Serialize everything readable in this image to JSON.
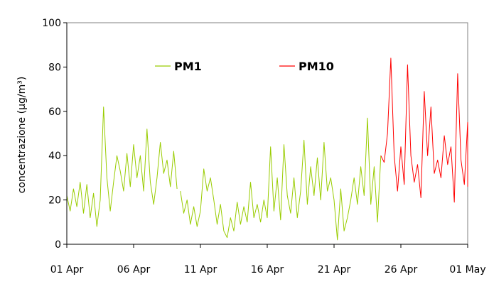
{
  "chart_data": {
    "type": "line",
    "title": "",
    "ylabel": "concentrazione (µg/m³)",
    "xlabel": "",
    "ylim": [
      0,
      100
    ],
    "yticks": [
      0,
      20,
      40,
      60,
      80,
      100
    ],
    "xlim": [
      "2008-04-01",
      "2008-05-01"
    ],
    "xticks": [
      {
        "date": "2008-04-01",
        "label": "01 Apr"
      },
      {
        "date": "2008-04-06",
        "label": "06 Apr"
      },
      {
        "date": "2008-04-11",
        "label": "11 Apr"
      },
      {
        "date": "2008-04-16",
        "label": "16 Apr"
      },
      {
        "date": "2008-04-21",
        "label": "21 Apr"
      },
      {
        "date": "2008-04-26",
        "label": "26 Apr"
      },
      {
        "date": "2008-05-01",
        "label": "01 May"
      }
    ],
    "grid": false,
    "legend": "top",
    "series": [
      {
        "name": "PM1",
        "color": "#99CC00",
        "points": [
          [
            "2008-04-01 00:00",
            22
          ],
          [
            "2008-04-01 06:00",
            15
          ],
          [
            "2008-04-01 12:00",
            25
          ],
          [
            "2008-04-01 18:00",
            17
          ],
          [
            "2008-04-02 00:00",
            28
          ],
          [
            "2008-04-02 06:00",
            14
          ],
          [
            "2008-04-02 12:00",
            27
          ],
          [
            "2008-04-02 18:00",
            12
          ],
          [
            "2008-04-03 00:00",
            23
          ],
          [
            "2008-04-03 06:00",
            8
          ],
          [
            "2008-04-03 12:00",
            20
          ],
          [
            "2008-04-03 18:00",
            62
          ],
          [
            "2008-04-04 00:00",
            30
          ],
          [
            "2008-04-04 06:00",
            15
          ],
          [
            "2008-04-04 12:00",
            28
          ],
          [
            "2008-04-04 18:00",
            40
          ],
          [
            "2008-04-05 00:00",
            33
          ],
          [
            "2008-04-05 06:00",
            24
          ],
          [
            "2008-04-05 12:00",
            41
          ],
          [
            "2008-04-05 18:00",
            26
          ],
          [
            "2008-04-06 00:00",
            45
          ],
          [
            "2008-04-06 06:00",
            30
          ],
          [
            "2008-04-06 12:00",
            40
          ],
          [
            "2008-04-06 18:00",
            24
          ],
          [
            "2008-04-07 00:00",
            52
          ],
          [
            "2008-04-07 06:00",
            28
          ],
          [
            "2008-04-07 12:00",
            18
          ],
          [
            "2008-04-07 18:00",
            30
          ],
          [
            "2008-04-08 00:00",
            46
          ],
          [
            "2008-04-08 06:00",
            32
          ],
          [
            "2008-04-08 12:00",
            38
          ],
          [
            "2008-04-08 18:00",
            26
          ],
          [
            "2008-04-09 00:00",
            42
          ],
          [
            "2008-04-09 06:00",
            25
          ]
        ]
      },
      {
        "name": "PM1",
        "color": "#99CC00",
        "points": [
          [
            "2008-04-09 12:00",
            24
          ],
          [
            "2008-04-09 18:00",
            14
          ],
          [
            "2008-04-10 00:00",
            20
          ],
          [
            "2008-04-10 06:00",
            9
          ],
          [
            "2008-04-10 12:00",
            17
          ],
          [
            "2008-04-10 18:00",
            8
          ],
          [
            "2008-04-11 00:00",
            15
          ],
          [
            "2008-04-11 06:00",
            34
          ],
          [
            "2008-04-11 12:00",
            24
          ],
          [
            "2008-04-11 18:00",
            30
          ],
          [
            "2008-04-12 00:00",
            20
          ],
          [
            "2008-04-12 06:00",
            9
          ],
          [
            "2008-04-12 12:00",
            18
          ],
          [
            "2008-04-12 18:00",
            6
          ],
          [
            "2008-04-13 00:00",
            3
          ],
          [
            "2008-04-13 06:00",
            12
          ],
          [
            "2008-04-13 12:00",
            6
          ],
          [
            "2008-04-13 18:00",
            19
          ],
          [
            "2008-04-14 00:00",
            9
          ],
          [
            "2008-04-14 06:00",
            17
          ],
          [
            "2008-04-14 12:00",
            10
          ],
          [
            "2008-04-14 18:00",
            28
          ],
          [
            "2008-04-15 00:00",
            12
          ],
          [
            "2008-04-15 06:00",
            18
          ],
          [
            "2008-04-15 12:00",
            10
          ],
          [
            "2008-04-15 18:00",
            20
          ],
          [
            "2008-04-16 00:00",
            12
          ],
          [
            "2008-04-16 06:00",
            44
          ],
          [
            "2008-04-16 12:00",
            15
          ],
          [
            "2008-04-16 18:00",
            30
          ],
          [
            "2008-04-17 00:00",
            11
          ],
          [
            "2008-04-17 06:00",
            45
          ],
          [
            "2008-04-17 12:00",
            22
          ],
          [
            "2008-04-17 18:00",
            14
          ],
          [
            "2008-04-18 00:00",
            30
          ],
          [
            "2008-04-18 06:00",
            12
          ],
          [
            "2008-04-18 12:00",
            24
          ],
          [
            "2008-04-18 18:00",
            47
          ],
          [
            "2008-04-19 00:00",
            18
          ],
          [
            "2008-04-19 06:00",
            35
          ],
          [
            "2008-04-19 12:00",
            22
          ],
          [
            "2008-04-19 18:00",
            39
          ],
          [
            "2008-04-20 00:00",
            20
          ],
          [
            "2008-04-20 06:00",
            46
          ],
          [
            "2008-04-20 12:00",
            24
          ],
          [
            "2008-04-20 18:00",
            30
          ],
          [
            "2008-04-21 00:00",
            20
          ],
          [
            "2008-04-21 06:00",
            2
          ],
          [
            "2008-04-21 12:00",
            25
          ],
          [
            "2008-04-21 18:00",
            6
          ],
          [
            "2008-04-22 00:00",
            12
          ],
          [
            "2008-04-22 06:00",
            20
          ],
          [
            "2008-04-22 12:00",
            30
          ],
          [
            "2008-04-22 18:00",
            18
          ],
          [
            "2008-04-23 00:00",
            35
          ],
          [
            "2008-04-23 06:00",
            22
          ],
          [
            "2008-04-23 12:00",
            57
          ],
          [
            "2008-04-23 18:00",
            18
          ],
          [
            "2008-04-24 00:00",
            35
          ],
          [
            "2008-04-24 06:00",
            10
          ],
          [
            "2008-04-24 12:00",
            40
          ]
        ]
      },
      {
        "name": "PM10",
        "color": "#FF0000",
        "points": [
          [
            "2008-04-24 12:00",
            40
          ],
          [
            "2008-04-24 18:00",
            37
          ],
          [
            "2008-04-25 00:00",
            50
          ],
          [
            "2008-04-25 06:00",
            84
          ],
          [
            "2008-04-25 12:00",
            40
          ],
          [
            "2008-04-25 18:00",
            24
          ],
          [
            "2008-04-26 00:00",
            44
          ],
          [
            "2008-04-26 06:00",
            27
          ],
          [
            "2008-04-26 12:00",
            81
          ],
          [
            "2008-04-26 18:00",
            40
          ],
          [
            "2008-04-27 00:00",
            28
          ],
          [
            "2008-04-27 06:00",
            36
          ],
          [
            "2008-04-27 12:00",
            21
          ],
          [
            "2008-04-27 18:00",
            69
          ],
          [
            "2008-04-28 00:00",
            40
          ],
          [
            "2008-04-28 06:00",
            62
          ],
          [
            "2008-04-28 12:00",
            32
          ],
          [
            "2008-04-28 18:00",
            38
          ],
          [
            "2008-04-29 00:00",
            30
          ],
          [
            "2008-04-29 06:00",
            49
          ],
          [
            "2008-04-29 12:00",
            36
          ],
          [
            "2008-04-29 18:00",
            44
          ],
          [
            "2008-04-30 00:00",
            19
          ],
          [
            "2008-04-30 06:00",
            77
          ],
          [
            "2008-04-30 12:00",
            38
          ],
          [
            "2008-04-30 18:00",
            27
          ],
          [
            "2008-05-01 00:00",
            55
          ],
          [
            "2008-05-01 00:00",
            26
          ]
        ]
      }
    ],
    "legend_entries": [
      {
        "label": "PM1",
        "color": "#99CC00"
      },
      {
        "label": "PM10",
        "color": "#FF0000"
      }
    ]
  }
}
